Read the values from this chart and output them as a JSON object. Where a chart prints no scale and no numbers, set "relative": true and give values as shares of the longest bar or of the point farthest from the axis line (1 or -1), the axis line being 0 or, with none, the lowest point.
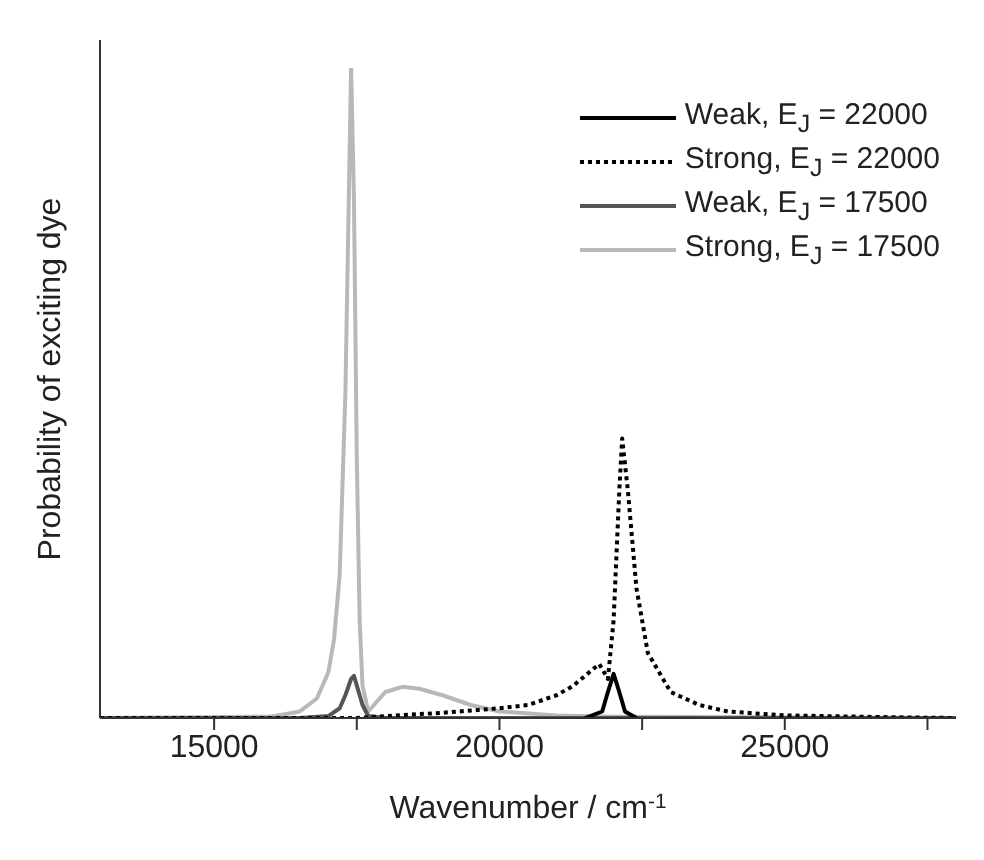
{
  "chart_data": {
    "type": "line",
    "relative": true,
    "xlabel": "Wavenumber / cm$^{-1}$",
    "ylabel": "Probability of exciting dye",
    "xlim": [
      13000,
      28000
    ],
    "xticks": [
      15000,
      {
        "value": 17500,
        "label": null
      },
      20000,
      {
        "value": 22500,
        "label": null
      },
      25000,
      {
        "value": 27500,
        "label": null
      }
    ],
    "legend": "top right",
    "grid": false,
    "marker": "none",
    "series": [
      {
        "name": "Weak, E$_{J}$ = 22000",
        "color": "#000000",
        "line_style": "solid",
        "x": [
          21500,
          21800,
          21900,
          22000,
          22100,
          22200,
          22400
        ],
        "values": [
          0,
          0.01,
          0.04,
          0.068,
          0.04,
          0.01,
          0
        ]
      },
      {
        "name": "Strong, E$_{J}$ = 22000",
        "color": "#000000",
        "line_style": "dotted",
        "x": [
          13000,
          17500,
          18000,
          19000,
          20000,
          20500,
          21000,
          21300,
          21500,
          21750,
          21900,
          22000,
          22100,
          22150,
          22250,
          22400,
          22600,
          23000,
          23500,
          24000,
          25000,
          27000,
          28000
        ],
        "values": [
          0,
          0,
          0.003,
          0.008,
          0.015,
          0.02,
          0.035,
          0.05,
          0.065,
          0.083,
          0.06,
          0.15,
          0.35,
          0.43,
          0.35,
          0.2,
          0.1,
          0.04,
          0.02,
          0.01,
          0.004,
          0.001,
          0
        ]
      },
      {
        "name": "Weak, E$_{J}$ = 17500",
        "color": "#555555",
        "line_style": "solid",
        "x": [
          13000,
          16500,
          17000,
          17200,
          17300,
          17400,
          17450,
          17500,
          17600,
          17700,
          18000,
          28000
        ],
        "values": [
          0,
          0,
          0.003,
          0.015,
          0.035,
          0.06,
          0.065,
          0.05,
          0.02,
          0.003,
          0,
          0
        ]
      },
      {
        "name": "Strong, E$_{J}$ = 17500",
        "color": "#b8b8b8",
        "line_style": "solid",
        "x": [
          13000,
          16000,
          16500,
          16800,
          17000,
          17100,
          17200,
          17300,
          17400,
          17450,
          17500,
          17550,
          17600,
          17700,
          17800,
          18000,
          18300,
          18600,
          19000,
          19500,
          20000,
          21000,
          22000,
          28000
        ],
        "values": [
          0,
          0.002,
          0.01,
          0.03,
          0.07,
          0.12,
          0.22,
          0.5,
          1.0,
          0.8,
          0.4,
          0.15,
          0.05,
          0.01,
          0.02,
          0.04,
          0.048,
          0.045,
          0.035,
          0.02,
          0.01,
          0.004,
          0.002,
          0
        ]
      }
    ]
  }
}
